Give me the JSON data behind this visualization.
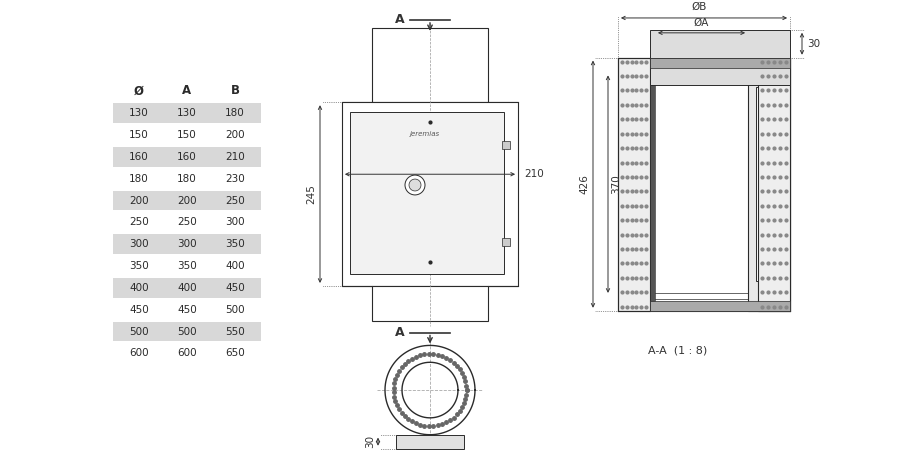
{
  "bg_color": "#ffffff",
  "table_data": {
    "headers": [
      "Ø",
      "A",
      "B"
    ],
    "rows": [
      [
        130,
        130,
        180
      ],
      [
        150,
        150,
        200
      ],
      [
        160,
        160,
        210
      ],
      [
        180,
        180,
        230
      ],
      [
        200,
        200,
        250
      ],
      [
        250,
        250,
        300
      ],
      [
        300,
        300,
        350
      ],
      [
        350,
        350,
        400
      ],
      [
        400,
        400,
        450
      ],
      [
        450,
        450,
        500
      ],
      [
        500,
        500,
        550
      ],
      [
        600,
        600,
        650
      ]
    ],
    "shaded_rows": [
      0,
      2,
      4,
      6,
      8,
      10
    ]
  },
  "dim_color": "#333333",
  "line_color": "#2a2a2a",
  "shade_color": "#d8d8d8",
  "font_size": 7.5
}
